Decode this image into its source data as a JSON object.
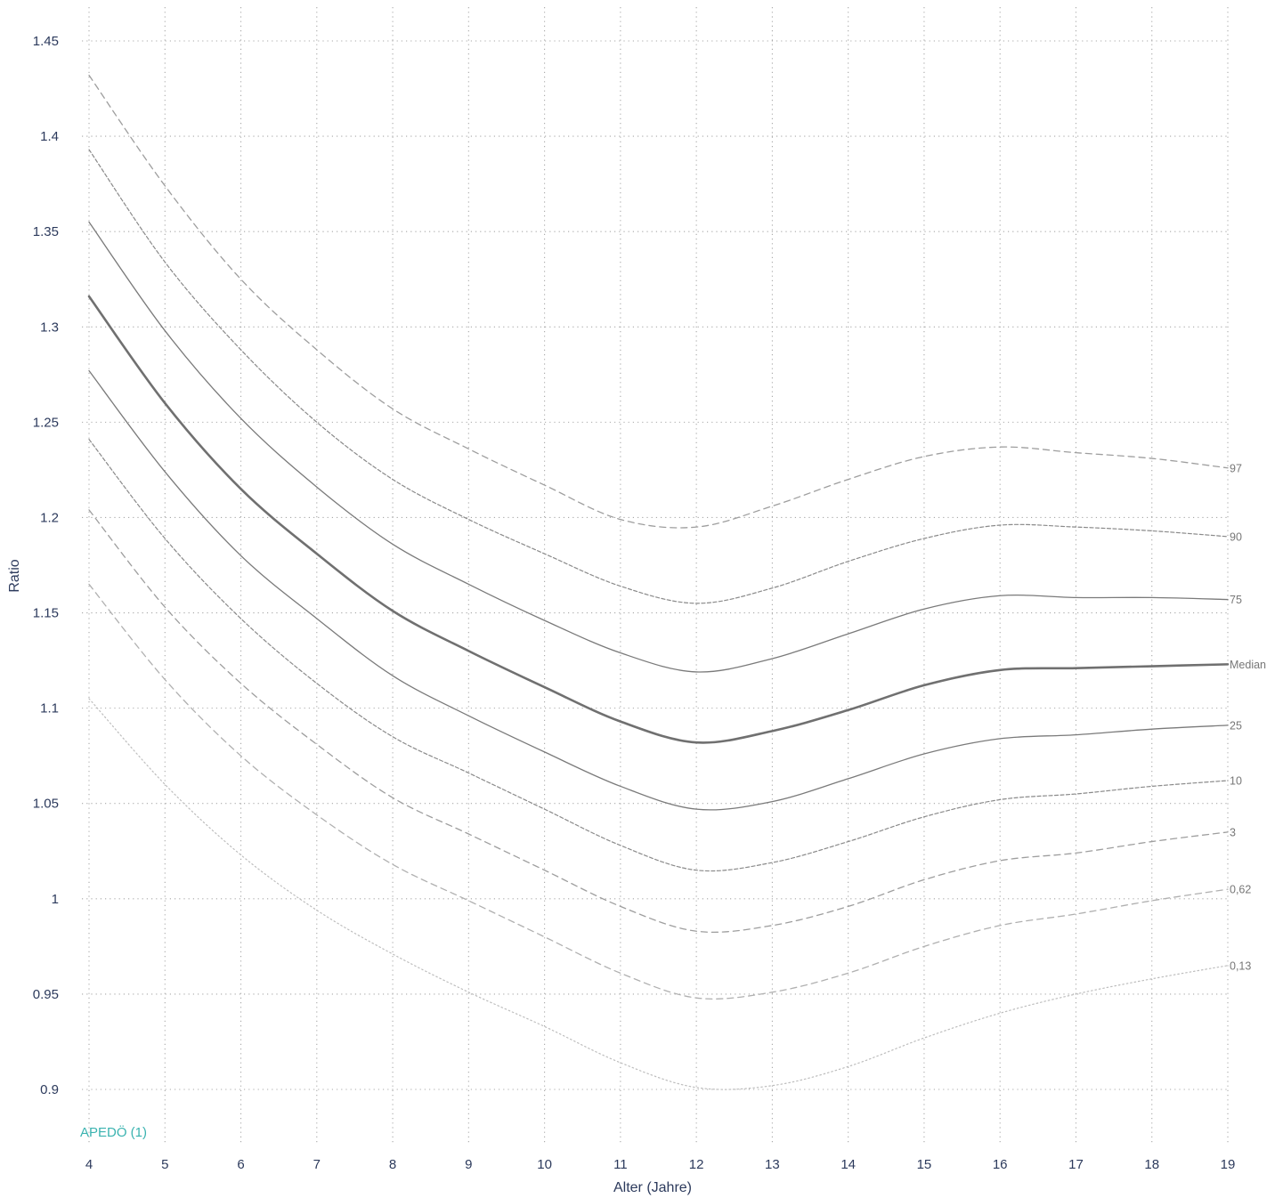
{
  "chart_data": {
    "type": "line",
    "xlabel": "Alter (Jahre)",
    "ylabel": "Ratio",
    "xlim": [
      4,
      19
    ],
    "ylim": [
      0.9,
      1.45
    ],
    "x_ticks": [
      4,
      5,
      6,
      7,
      8,
      9,
      10,
      11,
      12,
      13,
      14,
      15,
      16,
      17,
      18,
      19
    ],
    "y_ticks": [
      0.9,
      0.95,
      1,
      1.05,
      1.1,
      1.15,
      1.2,
      1.25,
      1.3,
      1.35,
      1.4,
      1.45
    ],
    "y_tick_labels": [
      "0.9",
      "0.95",
      "1",
      "1.05",
      "1.1",
      "1.15",
      "1.2",
      "1.25",
      "1.3",
      "1.35",
      "1.4",
      "1.45"
    ],
    "grid": true,
    "source_label": "APEDÖ (1)",
    "x": [
      4,
      5,
      6,
      7,
      8,
      9,
      10,
      11,
      12,
      13,
      14,
      15,
      16,
      17,
      18,
      19
    ],
    "series": [
      {
        "name": "97",
        "color": "#9e9e9e",
        "style": "dashed",
        "values": [
          1.432,
          1.374,
          1.325,
          1.288,
          1.257,
          1.236,
          1.217,
          1.199,
          1.195,
          1.206,
          1.22,
          1.232,
          1.237,
          1.234,
          1.231,
          1.226
        ]
      },
      {
        "name": "90",
        "color": "#8a8a8a",
        "style": "dashed-fine",
        "values": [
          1.393,
          1.334,
          1.288,
          1.25,
          1.22,
          1.199,
          1.181,
          1.164,
          1.155,
          1.163,
          1.177,
          1.189,
          1.196,
          1.195,
          1.193,
          1.19
        ]
      },
      {
        "name": "75",
        "color": "#7a7a7a",
        "style": "solid",
        "values": [
          1.355,
          1.298,
          1.252,
          1.216,
          1.186,
          1.165,
          1.146,
          1.129,
          1.119,
          1.126,
          1.139,
          1.152,
          1.159,
          1.158,
          1.158,
          1.157
        ]
      },
      {
        "name": "Median",
        "color": "#707070",
        "style": "solid-bold",
        "values": [
          1.316,
          1.26,
          1.215,
          1.181,
          1.151,
          1.13,
          1.111,
          1.093,
          1.082,
          1.088,
          1.099,
          1.112,
          1.12,
          1.121,
          1.122,
          1.123
        ]
      },
      {
        "name": "25",
        "color": "#7a7a7a",
        "style": "solid",
        "values": [
          1.277,
          1.224,
          1.18,
          1.147,
          1.117,
          1.096,
          1.077,
          1.059,
          1.047,
          1.051,
          1.063,
          1.076,
          1.084,
          1.086,
          1.089,
          1.091
        ]
      },
      {
        "name": "10",
        "color": "#8a8a8a",
        "style": "dashed-fine",
        "values": [
          1.241,
          1.189,
          1.147,
          1.113,
          1.085,
          1.066,
          1.047,
          1.028,
          1.015,
          1.019,
          1.03,
          1.043,
          1.052,
          1.055,
          1.059,
          1.062
        ]
      },
      {
        "name": "3",
        "color": "#9e9e9e",
        "style": "dashed",
        "values": [
          1.204,
          1.153,
          1.113,
          1.081,
          1.053,
          1.034,
          1.015,
          0.996,
          0.983,
          0.986,
          0.996,
          1.01,
          1.02,
          1.024,
          1.03,
          1.035
        ]
      },
      {
        "name": "0,62",
        "color": "#b0b0b0",
        "style": "dashed",
        "values": [
          1.165,
          1.115,
          1.075,
          1.044,
          1.018,
          0.999,
          0.98,
          0.961,
          0.948,
          0.951,
          0.961,
          0.975,
          0.986,
          0.992,
          0.999,
          1.005
        ]
      },
      {
        "name": "0,13",
        "color": "#bdbdbd",
        "style": "dotted",
        "values": [
          1.105,
          1.06,
          1.023,
          0.994,
          0.971,
          0.951,
          0.933,
          0.914,
          0.901,
          0.902,
          0.912,
          0.927,
          0.94,
          0.95,
          0.958,
          0.965
        ]
      }
    ]
  }
}
